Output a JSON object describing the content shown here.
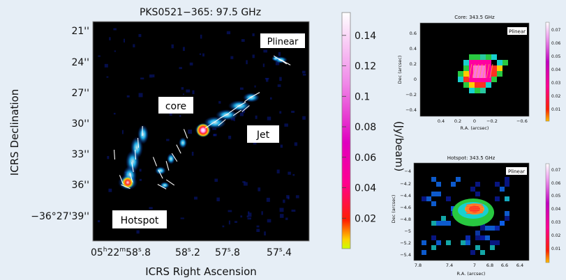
{
  "main_panel": {
    "title": "PKS0521−365: 97.5 GHz",
    "xlabel": "ICRS Right Ascension",
    "ylabel": "ICRS Declination",
    "ra_ticks": [
      {
        "h": "05",
        "m": "22",
        "s": "58",
        "f": ".8"
      },
      {
        "s": "58",
        "f": ".2"
      },
      {
        "s": "57",
        "f": ".8"
      },
      {
        "s": "57",
        "f": ".4"
      }
    ],
    "dec_ticks": [
      "21''",
      "24''",
      "27''",
      "30''",
      "33''",
      "36''",
      "−36°27'39''"
    ],
    "labels": {
      "plinear": "Plinear",
      "core": "core",
      "jet": "Jet",
      "hotspot": "Hotspot"
    },
    "colorbar": {
      "unit": "(Jy/beam)",
      "ticks": [
        "0.14",
        "0.12",
        "0.1",
        "0.08",
        "0.06",
        "0.04",
        "0.02"
      ],
      "tick_values": [
        0.14,
        0.12,
        0.1,
        0.08,
        0.06,
        0.04,
        0.02
      ],
      "range": [
        0,
        0.155
      ]
    }
  },
  "core_panel": {
    "title": "Core: 343.5 GHz",
    "badge": "Plinear",
    "xlabel": "R.A. (arcsec)",
    "ylabel": "Dec (arcsec)",
    "xticks": [
      "0.4",
      "0.2",
      "0",
      "−0.2",
      "−0.6"
    ],
    "yticks": [
      "0.6",
      "0.4",
      "0.2",
      "0",
      "−0.2",
      "−0.4"
    ],
    "colorbar_ticks": [
      "0.07",
      "0.06",
      "0.05",
      "0.04",
      "0.03",
      "0.02",
      "0.01"
    ]
  },
  "hotspot_panel": {
    "title": "Hotspot: 343.5 GHz",
    "badge": "Plinear",
    "xlabel": "R.A. (arcsec)",
    "ylabel": "Dec (arcsec)",
    "xticks": [
      "7.8",
      "7.4",
      "7",
      "6.8",
      "6.6",
      "6.4"
    ],
    "yticks": [
      "−4",
      "−4.2",
      "−4.4",
      "−4.6",
      "−4.8",
      "−5",
      "−5.2",
      "−5.4"
    ],
    "colorbar_ticks": [
      "0.07",
      "0.06",
      "0.05",
      "0.04",
      "0.03",
      "0.02",
      "0.01"
    ]
  },
  "colors": {
    "background": "#e6eef6",
    "map_bg": "#000000",
    "noise": "#0a1a8a"
  }
}
